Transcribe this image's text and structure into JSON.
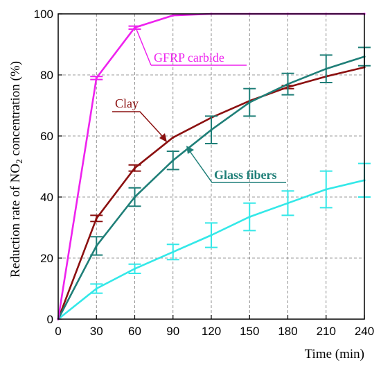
{
  "chart_data": {
    "type": "line",
    "xlabel": "Time (min)",
    "ylabel_parts": [
      "Reduction rate of NO",
      "2",
      " concentration (%)"
    ],
    "xlim": [
      0,
      240
    ],
    "ylim": [
      0,
      100
    ],
    "x_ticks": [
      0,
      30,
      60,
      90,
      120,
      150,
      180,
      210,
      240
    ],
    "y_ticks": [
      0,
      20,
      40,
      60,
      80,
      100
    ],
    "grid": true,
    "series": [
      {
        "name": "GFRP carbide",
        "color": "#ee22ee",
        "x": [
          0,
          30,
          60,
          90,
          120,
          150,
          180,
          210,
          240
        ],
        "y": [
          0,
          79,
          95.5,
          99.5,
          100,
          100,
          100,
          100,
          100
        ],
        "err": [
          0,
          0.5,
          0.5,
          0,
          0,
          0,
          0,
          0,
          0
        ]
      },
      {
        "name": "Clay",
        "color": "#8b1010",
        "x": [
          0,
          30,
          60,
          90,
          120,
          150,
          180,
          210,
          240
        ],
        "y": [
          0,
          33,
          49.5,
          59.5,
          66,
          71.5,
          76,
          79.5,
          82.5
        ],
        "err": [
          0,
          1,
          1,
          0,
          0,
          0,
          0.5,
          0,
          0
        ]
      },
      {
        "name": "Glass fibers",
        "color": "#1f7f78",
        "x": [
          0,
          30,
          60,
          90,
          120,
          150,
          180,
          210,
          240
        ],
        "y": [
          0,
          24,
          40,
          52,
          62,
          71,
          77,
          82,
          86
        ],
        "err": [
          0,
          3,
          3,
          3,
          4.5,
          4.5,
          3.5,
          4.5,
          3
        ]
      },
      {
        "name": "",
        "color": "#33e8e8",
        "x": [
          0,
          30,
          60,
          90,
          120,
          150,
          180,
          210,
          240
        ],
        "y": [
          0,
          10,
          16.5,
          22,
          27.5,
          33.5,
          38,
          42.5,
          45.5
        ],
        "err": [
          0,
          1.5,
          1.5,
          2.5,
          4,
          4.5,
          4,
          6,
          5.5
        ]
      }
    ],
    "annotations": [
      {
        "text": "GFRP carbide",
        "series": "GFRP carbide",
        "color": "#ee22ee"
      },
      {
        "text": "Clay",
        "series": "Clay",
        "color": "#8b1010"
      },
      {
        "text": "Glass fibers",
        "series": "Glass fibers",
        "color": "#1f7f78"
      }
    ]
  }
}
